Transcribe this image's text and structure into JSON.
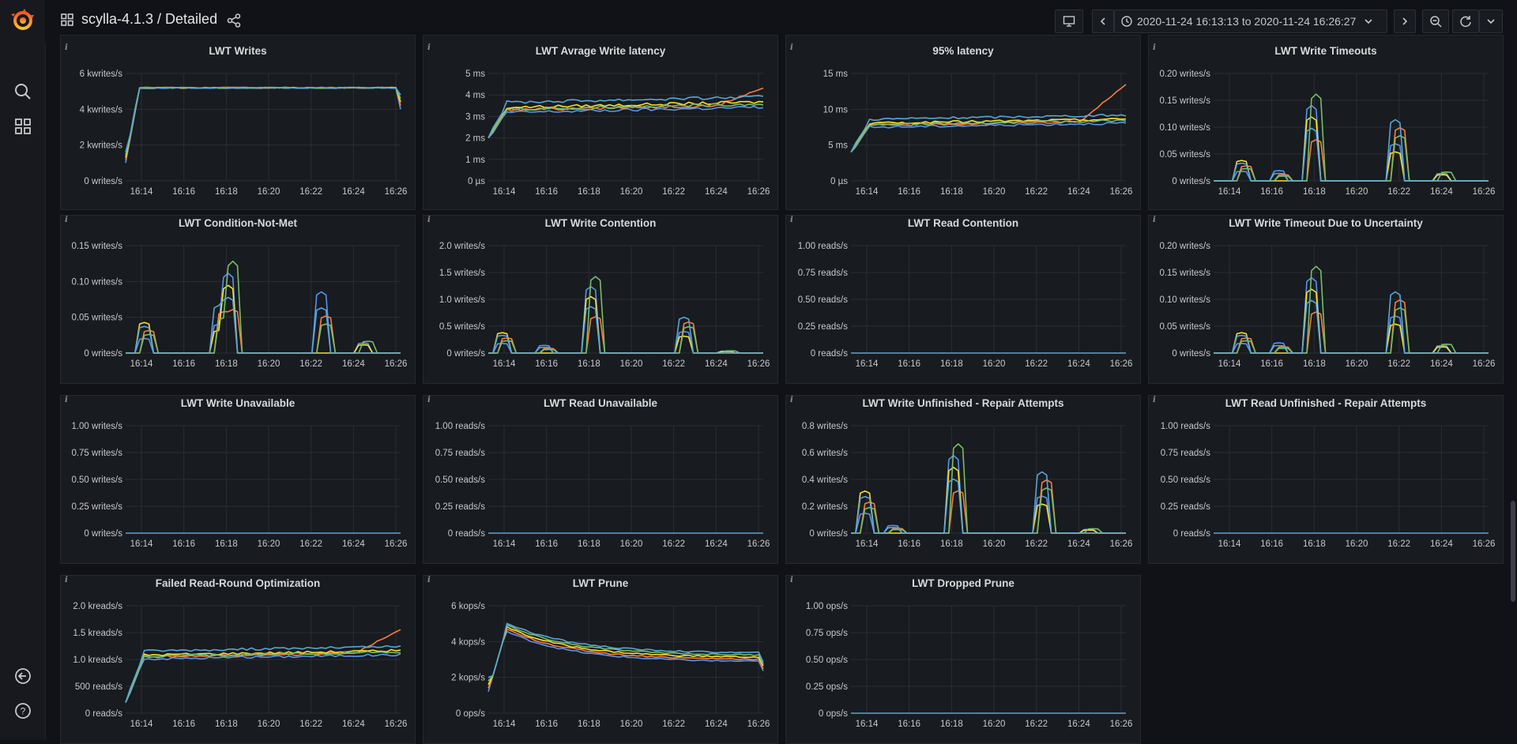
{
  "header": {
    "breadcrumb": "scylla-4.1.3 / Detailed",
    "time_range": "2020-11-24 16:13:13 to 2020-11-24 16:26:27"
  },
  "icons": {
    "logo": "grafana-logo-icon",
    "search": "search-icon",
    "dashboards": "dashboards-grid-icon",
    "signin": "sign-in-icon",
    "help": "help-icon"
  },
  "colors": {
    "blue": "#5794f2",
    "cyan": "#56a6d9",
    "orange": "#ff7a3c",
    "yellow": "#fade2a",
    "green": "#73bf69",
    "red": "#f2495c"
  },
  "x_ticks": [
    "16:14",
    "16:16",
    "16:18",
    "16:20",
    "16:22",
    "16:24",
    "16:26"
  ],
  "panels": [
    {
      "title": "LWT Writes",
      "y_ticks": [
        "0 writes/s",
        "2 kwrites/s",
        "4 kwrites/s",
        "6 kwrites/s"
      ],
      "ymax": 6,
      "type": "plateau",
      "level": 5.2,
      "start": 1.0
    },
    {
      "title": "LWT Avrage Write latency",
      "y_ticks": [
        "0 µs",
        "1 ms",
        "2 ms",
        "3 ms",
        "4 ms",
        "5 ms"
      ],
      "ymax": 5,
      "type": "latency",
      "level": 3.4,
      "start": 2.0,
      "tail": 4.4
    },
    {
      "title": "95% latency",
      "y_ticks": [
        "0 µs",
        "5 ms",
        "10 ms",
        "15 ms"
      ],
      "ymax": 15,
      "type": "latency",
      "level": 8,
      "start": 4,
      "tail": 14
    },
    {
      "title": "LWT Write Timeouts",
      "y_ticks": [
        "0 writes/s",
        "0.05 writes/s",
        "0.10 writes/s",
        "0.15 writes/s",
        "0.20 writes/s"
      ],
      "ymax": 0.2,
      "type": "spikes",
      "peaks": [
        [
          0.04,
          0.1
        ],
        [
          0.17,
          0.35
        ],
        [
          0.12,
          0.66
        ],
        [
          0.02,
          0.24
        ],
        [
          0.02,
          0.83
        ]
      ]
    },
    {
      "title": "LWT Condition-Not-Met",
      "y_ticks": [
        "0 writes/s",
        "0.05 writes/s",
        "0.10 writes/s",
        "0.15 writes/s"
      ],
      "ymax": 0.15,
      "type": "spikes",
      "peaks": [
        [
          0.045,
          0.06
        ],
        [
          0.135,
          0.37
        ],
        [
          0.07,
          0.34
        ],
        [
          0.09,
          0.72
        ],
        [
          0.02,
          0.87
        ]
      ]
    },
    {
      "title": "LWT Write Contention",
      "y_ticks": [
        "0 writes/s",
        "0.5 writes/s",
        "1.0 writes/s",
        "1.5 writes/s",
        "2.0 writes/s"
      ],
      "ymax": 2,
      "type": "spikes",
      "peaks": [
        [
          0.4,
          0.05
        ],
        [
          1.5,
          0.37
        ],
        [
          0.7,
          0.71
        ],
        [
          0.15,
          0.2
        ],
        [
          0.05,
          0.86
        ]
      ]
    },
    {
      "title": "LWT Read Contention",
      "y_ticks": [
        "0 reads/s",
        "0.25 reads/s",
        "0.50 reads/s",
        "0.75 reads/s",
        "1.00 reads/s"
      ],
      "ymax": 1,
      "type": "flat"
    },
    {
      "title": "LWT Write Timeout Due to Uncertainty",
      "y_ticks": [
        "0 writes/s",
        "0.05 writes/s",
        "0.10 writes/s",
        "0.15 writes/s",
        "0.20 writes/s"
      ],
      "ymax": 0.2,
      "type": "spikes",
      "peaks": [
        [
          0.04,
          0.1
        ],
        [
          0.17,
          0.35
        ],
        [
          0.12,
          0.66
        ],
        [
          0.02,
          0.24
        ],
        [
          0.02,
          0.83
        ]
      ]
    },
    {
      "title": "LWT Write Unavailable",
      "y_ticks": [
        "0 writes/s",
        "0.25 writes/s",
        "0.50 writes/s",
        "0.75 writes/s",
        "1.00 writes/s"
      ],
      "ymax": 1,
      "type": "flat"
    },
    {
      "title": "LWT Read Unavailable",
      "y_ticks": [
        "0 reads/s",
        "0.25 reads/s",
        "0.50 reads/s",
        "0.75 reads/s",
        "1.00 reads/s"
      ],
      "ymax": 1,
      "type": "flat"
    },
    {
      "title": "LWT Write Unfinished - Repair Attempts",
      "y_ticks": [
        "0 writes/s",
        "0.2 writes/s",
        "0.4 writes/s",
        "0.6 writes/s",
        "0.8 writes/s"
      ],
      "ymax": 0.8,
      "type": "spikes",
      "peaks": [
        [
          0.33,
          0.05
        ],
        [
          0.7,
          0.37
        ],
        [
          0.48,
          0.7
        ],
        [
          0.06,
          0.16
        ],
        [
          0.04,
          0.86
        ]
      ]
    },
    {
      "title": "LWT Read Unfinished - Repair Attempts",
      "y_ticks": [
        "0 reads/s",
        "0.25 reads/s",
        "0.50 reads/s",
        "0.75 reads/s",
        "1.00 reads/s"
      ],
      "ymax": 1,
      "type": "flat"
    },
    {
      "title": "Failed Read-Round Optimization",
      "y_ticks": [
        "0 reads/s",
        "500 reads/s",
        "1.0 kreads/s",
        "1.5 kreads/s",
        "2.0 kreads/s"
      ],
      "ymax": 2,
      "type": "latency",
      "level": 1.08,
      "start": 0.2,
      "tail": 1.6
    },
    {
      "title": "LWT Prune",
      "y_ticks": [
        "0 ops/s",
        "2 kops/s",
        "4 kops/s",
        "6 kops/s"
      ],
      "ymax": 6,
      "type": "decay",
      "peak": 4.8,
      "end": 3.1
    },
    {
      "title": "LWT Dropped Prune",
      "y_ticks": [
        "0 ops/s",
        "0.25 ops/s",
        "0.50 ops/s",
        "0.75 ops/s",
        "1.00 ops/s"
      ],
      "ymax": 1,
      "type": "flat"
    }
  ]
}
